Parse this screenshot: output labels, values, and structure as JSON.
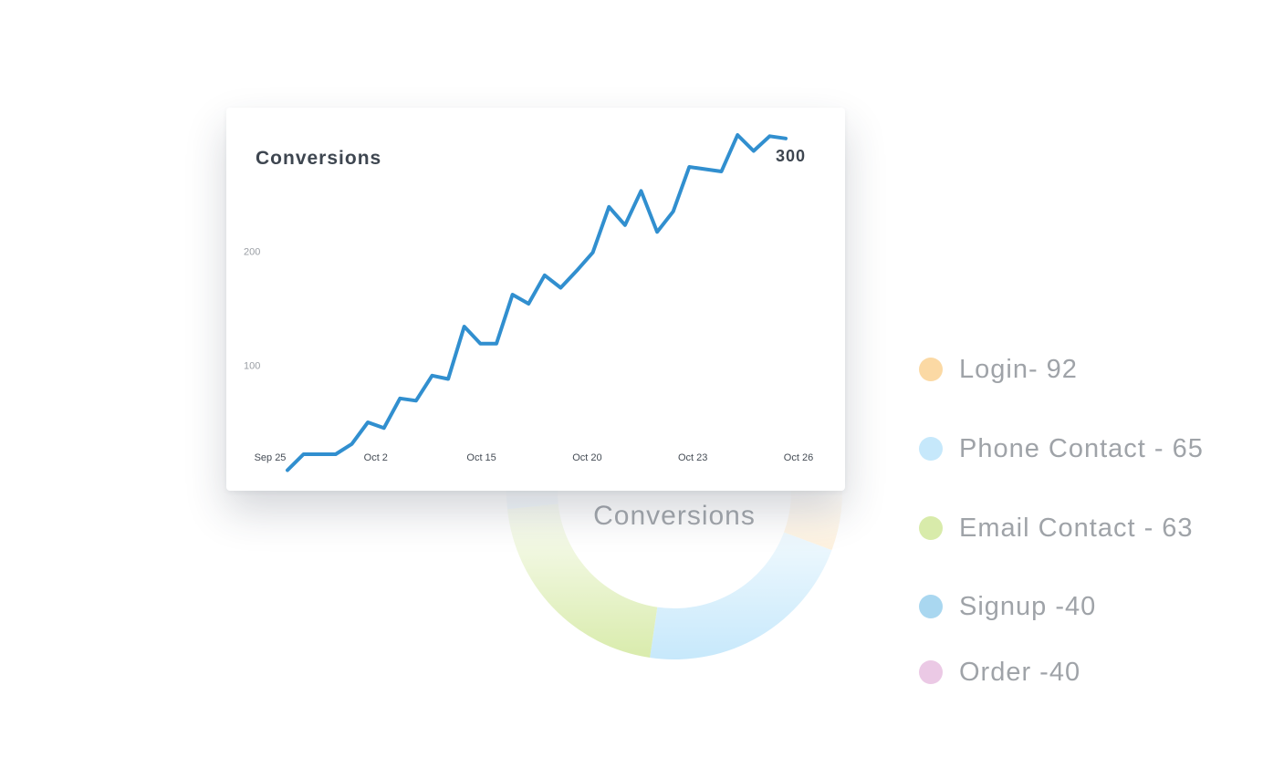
{
  "chart_data": [
    {
      "type": "line",
      "title": "Conversions",
      "total": "300",
      "x_tick_labels": [
        "Sep 25",
        "Oct 2",
        "Oct 15",
        "Oct 20",
        "Oct 23",
        "Oct 26"
      ],
      "y_tick_labels": [
        "200",
        "100"
      ],
      "y_ticks": [
        200,
        100
      ],
      "ylim": [
        -10,
        310
      ],
      "series": [
        {
          "color": "#318fcf",
          "values": [
            8,
            22,
            22,
            22,
            31,
            50,
            45,
            71,
            69,
            91,
            88,
            134,
            119,
            119,
            162,
            154,
            179,
            168,
            183,
            199,
            239,
            223,
            253,
            217,
            235,
            274,
            272,
            270,
            302,
            288,
            301,
            299
          ]
        }
      ],
      "grid": false
    },
    {
      "type": "pie",
      "donut": true,
      "center_label": "Conversions",
      "legend_position": "right",
      "slices": [
        {
          "label": "Login- 92",
          "value": 92,
          "color": "#fbd9a4"
        },
        {
          "label": "Phone Contact - 65",
          "value": 65,
          "color": "#c6e8fb"
        },
        {
          "label": "Email Contact - 63",
          "value": 63,
          "color": "#d8ebaa"
        },
        {
          "label": "Signup -40",
          "value": 40,
          "color": "#a9d7f0"
        },
        {
          "label": "Order -40",
          "value": 40,
          "color": "#ebc9e5"
        }
      ]
    }
  ]
}
